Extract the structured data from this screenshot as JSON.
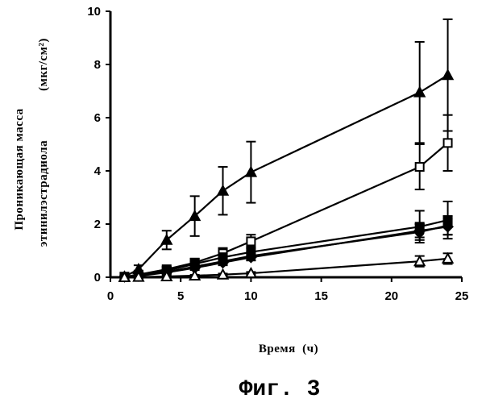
{
  "chart_data": {
    "type": "line",
    "xlabel": "Время  (ч)",
    "ylabel_line1": "Проникающая масса",
    "ylabel_line2": "этинилэстрадиола",
    "ylabel_unit": "(мкг/см²)",
    "xlim": [
      0,
      25
    ],
    "ylim": [
      0,
      10
    ],
    "xticks": [
      0,
      5,
      10,
      15,
      20,
      25
    ],
    "yticks": [
      0,
      2,
      4,
      6,
      8,
      10
    ],
    "grid": false,
    "series": [
      {
        "marker": "filled-triangle",
        "x": [
          1,
          2,
          4,
          6,
          8,
          10,
          22,
          24
        ],
        "y": [
          0.02,
          0.3,
          1.4,
          2.3,
          3.25,
          3.95,
          6.95,
          7.6
        ],
        "err": [
          0.05,
          0.15,
          0.35,
          0.75,
          0.9,
          1.15,
          1.9,
          2.1
        ]
      },
      {
        "marker": "open-square",
        "x": [
          1,
          2,
          4,
          6,
          8,
          10,
          22,
          24
        ],
        "y": [
          0.02,
          0.1,
          0.3,
          0.55,
          0.9,
          1.35,
          4.15,
          5.05
        ],
        "err": [
          0.03,
          0.05,
          0.1,
          0.15,
          0.2,
          0.25,
          0.85,
          1.05
        ]
      },
      {
        "marker": "filled-square",
        "x": [
          1,
          2,
          4,
          6,
          8,
          10,
          22,
          24
        ],
        "y": [
          0.02,
          0.08,
          0.25,
          0.5,
          0.75,
          0.95,
          1.9,
          2.15
        ],
        "err": [
          0.02,
          0.04,
          0.08,
          0.1,
          0.15,
          0.2,
          0.6,
          0.7
        ]
      },
      {
        "marker": "filled-circle",
        "x": [
          1,
          2,
          4,
          6,
          8,
          10,
          22,
          24
        ],
        "y": [
          0.02,
          0.06,
          0.2,
          0.4,
          0.6,
          0.8,
          1.7,
          1.95
        ],
        "err": [
          0.02,
          0.03,
          0.06,
          0.08,
          0.1,
          0.15,
          0.3,
          0.35
        ]
      },
      {
        "marker": "filled-diamond",
        "x": [
          1,
          2,
          4,
          6,
          8,
          10,
          22,
          24
        ],
        "y": [
          0.02,
          0.05,
          0.18,
          0.35,
          0.55,
          0.75,
          1.75,
          1.9
        ],
        "err": [
          0.02,
          0.03,
          0.05,
          0.08,
          0.1,
          0.12,
          0.25,
          0.3
        ]
      },
      {
        "marker": "open-triangle",
        "x": [
          1,
          2,
          4,
          6,
          8,
          10,
          22,
          24
        ],
        "y": [
          0.0,
          0.01,
          0.03,
          0.06,
          0.1,
          0.15,
          0.6,
          0.7
        ],
        "err": [
          0.01,
          0.01,
          0.02,
          0.03,
          0.04,
          0.05,
          0.2,
          0.2
        ]
      }
    ]
  },
  "caption": "Фиг. 3"
}
